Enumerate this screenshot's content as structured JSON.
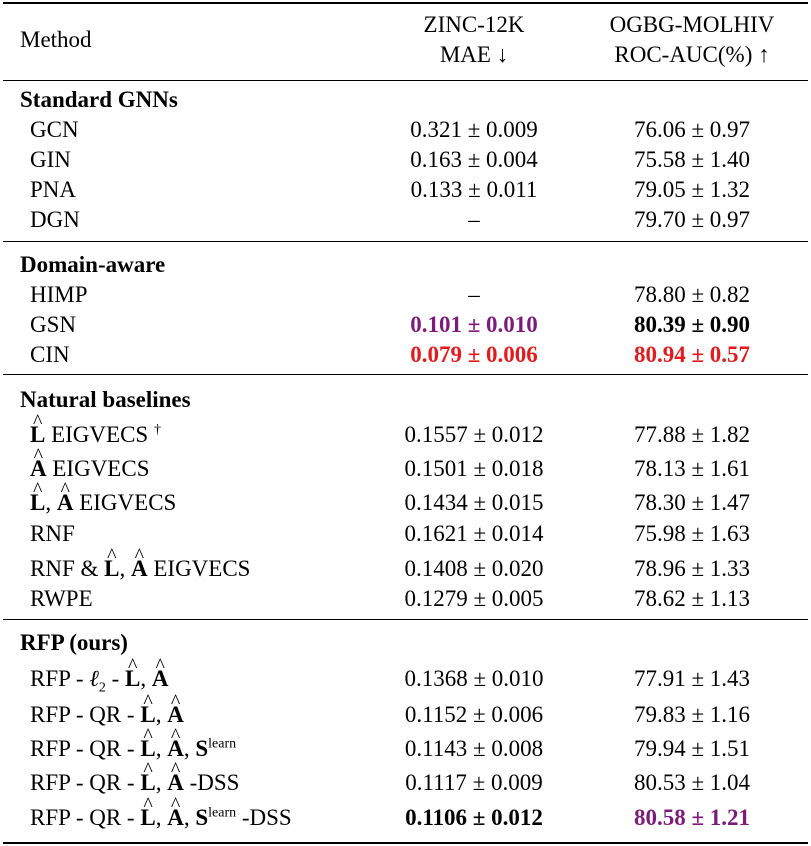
{
  "header": {
    "method": "Method",
    "zinc_line1": "ZINC-12K",
    "zinc_line2": "MAE ↓",
    "hiv_line1": "OGBG-MOLHIV",
    "hiv_line2": "ROC-AUC(%) ↑"
  },
  "sections": {
    "standard": {
      "title": "Standard GNNs",
      "rows": [
        {
          "method": "GCN",
          "zinc": "0.321 ± 0.009",
          "hiv": "76.06 ± 0.97"
        },
        {
          "method": "GIN",
          "zinc": "0.163 ± 0.004",
          "hiv": "75.58 ± 1.40"
        },
        {
          "method": "PNA",
          "zinc": "0.133 ± 0.011",
          "hiv": "79.05 ± 1.32"
        },
        {
          "method": "DGN",
          "zinc": "–",
          "hiv": "79.70 ± 0.97"
        }
      ]
    },
    "domain": {
      "title": "Domain-aware",
      "rows": [
        {
          "method": "HIMP",
          "zinc": "–",
          "hiv": "78.80 ± 0.82"
        },
        {
          "method": "GSN",
          "zinc": "0.101 ± 0.010",
          "hiv": "80.39 ± 0.90"
        },
        {
          "method": "CIN",
          "zinc": "0.079 ± 0.006",
          "hiv": "80.94 ± 0.57"
        }
      ]
    },
    "natural": {
      "title": "Natural baselines",
      "rows": [
        {
          "zinc": "0.1557 ± 0.012",
          "hiv": "77.88 ± 1.82"
        },
        {
          "zinc": "0.1501 ± 0.018",
          "hiv": "78.13 ± 1.61"
        },
        {
          "zinc": "0.1434 ± 0.015",
          "hiv": "78.30 ± 1.47"
        },
        {
          "method": "RNF",
          "zinc": "0.1621 ± 0.014",
          "hiv": "75.98 ± 1.63"
        },
        {
          "zinc": "0.1408 ± 0.020",
          "hiv": "78.96 ± 1.33"
        },
        {
          "method": "RWPE",
          "zinc": "0.1279 ± 0.005",
          "hiv": "78.62 ± 1.13"
        }
      ]
    },
    "rfp": {
      "title": "RFP (ours)",
      "rows": [
        {
          "zinc": "0.1368 ± 0.010",
          "hiv": "77.91 ± 1.43"
        },
        {
          "zinc": "0.1152 ± 0.006",
          "hiv": "79.83 ± 1.16"
        },
        {
          "zinc": "0.1143 ± 0.008",
          "hiv": "79.94 ± 1.51"
        },
        {
          "zinc": "0.1117 ± 0.009",
          "hiv": "80.53 ± 1.04"
        },
        {
          "zinc": "0.1106 ± 0.012",
          "hiv": "80.58 ± 1.21"
        }
      ]
    }
  },
  "symbols": {
    "L": "L",
    "A": "A",
    "S": "S",
    "dagger": "†",
    "learn": "learn",
    "ell": "ℓ",
    "two": "2",
    "eigvecs": "EIGVECS",
    "rnf_amp": "RNF &",
    "rfp_dash": "RFP -",
    "qr": "QR -",
    "dss": "-DSS",
    "comma": ",",
    "dash": "-"
  },
  "colors": {
    "best": "#e41a1c",
    "second": "#7b1c7b"
  }
}
